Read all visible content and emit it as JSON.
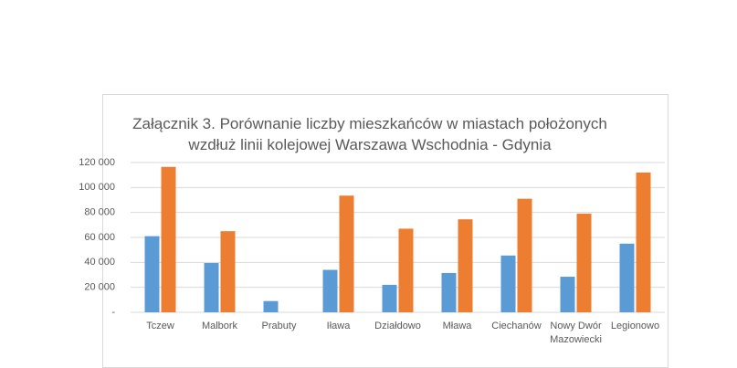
{
  "chart_data": {
    "type": "bar",
    "title": "Załącznik 3. Porównanie liczby mieszkańców w miastach położonych wzdłuż linii kolejowej Warszawa Wschodnia - Gdynia",
    "categories": [
      "Tczew",
      "Malbork",
      "Prabuty",
      "Iława",
      "Działdowo",
      "Mława",
      "Ciechanów",
      "Nowy Dwór Mazowiecki",
      "Legionowo"
    ],
    "series": [
      {
        "color": "#5b9bd5",
        "values": [
          61000,
          39500,
          9000,
          34000,
          22000,
          31500,
          45500,
          28500,
          55000
        ]
      },
      {
        "color": "#ed7d31",
        "values": [
          116500,
          65000,
          null,
          93500,
          67000,
          74500,
          91000,
          79000,
          112000
        ]
      }
    ],
    "ylim": [
      0,
      120000
    ],
    "yticks": [
      {
        "value": 0,
        "label": "-"
      },
      {
        "value": 20000,
        "label": "20 000"
      },
      {
        "value": 40000,
        "label": "40 000"
      },
      {
        "value": 60000,
        "label": "60 000"
      },
      {
        "value": 80000,
        "label": "80 000"
      },
      {
        "value": 100000,
        "label": "100 000"
      },
      {
        "value": 120000,
        "label": "120 000"
      }
    ],
    "grid": true
  }
}
